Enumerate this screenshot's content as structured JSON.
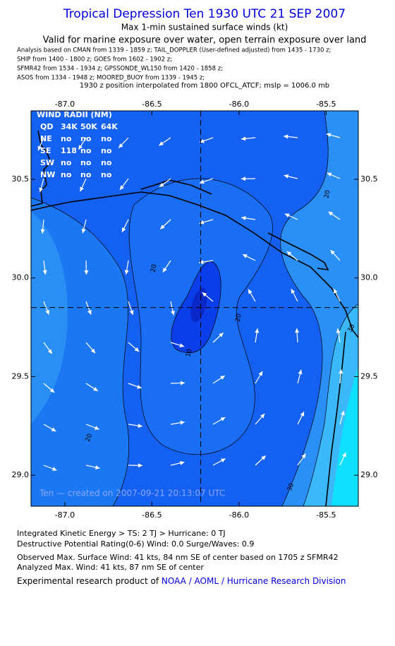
{
  "header": {
    "title": "Tropical Depression Ten 1930 UTC 21 SEP 2007",
    "subtitle": "Max 1-min sustained surface winds (kt)",
    "validity": "Valid for marine exposure over water, open terrain exposure over land",
    "sources": [
      "Analysis based on  CMAN from 1339 - 1859 z;  TAIL_DOPPLER (User-defined adjusted) from 1435 - 1730 z;",
      "SHIP from 1400 - 1800 z;  GOES from 1602 - 1902 z;",
      "SFMR42 from 1534 - 1934 z;  GPSSONDE_WL150 from 1420 - 1858 z;",
      "ASOS from 1334 - 1948 z;  MOORED_BUOY from 1339 - 1945 z;"
    ],
    "position_note": "1930 z position interpolated from 1800 OFCL_ATCF; mslp = 1006.0 mb"
  },
  "chart_data": {
    "type": "contour",
    "xlim": [
      -87.194,
      -85.315
    ],
    "ylim": [
      28.843,
      30.847
    ],
    "xticks": [
      {
        "value": -87,
        "label": "-87.0"
      },
      -86.5,
      {
        "value": -86,
        "label": "-86.0"
      },
      -85.5
    ],
    "yticks": [
      {
        "value": 29,
        "label": "29.0"
      },
      29.5,
      {
        "value": 30,
        "label": "30.0"
      },
      30.5
    ],
    "center": {
      "lon": -86.22,
      "lat": 29.85
    },
    "contour_labels": [
      10,
      20,
      20,
      20,
      20,
      30,
      30
    ],
    "wind_radii": {
      "title": "WIND RADII (NM)",
      "header": [
        "QD",
        "34K",
        "50K",
        "64K"
      ],
      "rows": [
        [
          "NE",
          "no",
          "no",
          "no"
        ],
        [
          "SE",
          "118",
          "no",
          "no"
        ],
        [
          "SW",
          "no",
          "no",
          "no"
        ],
        [
          "NW",
          "no",
          "no",
          "no"
        ]
      ]
    },
    "annotation": "Ten — created on 2007-09-21 20:13:07 UTC"
  },
  "footer": {
    "lines": [
      "Integrated Kinetic Energy > TS: 2 TJ   > Hurricane: 0 TJ",
      "Destructive Potential Rating(0-6)  Wind: 0.0 Surge/Waves: 0.9",
      "Observed Max. Surface Wind: 41 kts, 84 nm SE of center based on 1705 z SFMR42",
      "Analyzed Max. Wind: 41 kts, 87 nm SE of center"
    ],
    "credit_prefix": "Experimental research product of ",
    "credit_link": "NOAA / AOML / Hurricane Research Division"
  }
}
